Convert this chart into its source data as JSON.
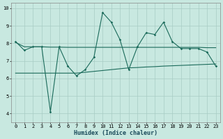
{
  "xlabel": "Humidex (Indice chaleur)",
  "background_color": "#c8e8e0",
  "grid_color": "#a8ccc4",
  "line_color": "#1a6a5a",
  "x": [
    0,
    1,
    2,
    3,
    4,
    5,
    6,
    7,
    8,
    9,
    10,
    11,
    12,
    13,
    14,
    15,
    16,
    17,
    18,
    19,
    20,
    21,
    22,
    23
  ],
  "y_jagged": [
    8.1,
    7.6,
    7.8,
    7.8,
    4.1,
    7.8,
    6.7,
    6.15,
    6.5,
    7.2,
    9.75,
    9.2,
    8.2,
    6.5,
    7.8,
    8.6,
    8.5,
    9.2,
    8.1,
    7.7,
    7.7,
    7.7,
    7.5,
    6.7
  ],
  "y_smooth": [
    8.05,
    7.8,
    7.8,
    7.8,
    7.78,
    7.78,
    7.77,
    7.77,
    7.77,
    7.77,
    7.77,
    7.77,
    7.77,
    7.77,
    7.77,
    7.77,
    7.77,
    7.77,
    7.77,
    7.77,
    7.77,
    7.77,
    7.75,
    7.75
  ],
  "y_smooth2": [
    6.3,
    6.3,
    6.3,
    6.3,
    6.3,
    6.3,
    6.3,
    6.3,
    6.35,
    6.4,
    6.45,
    6.5,
    6.55,
    6.6,
    6.62,
    6.65,
    6.67,
    6.7,
    6.72,
    6.74,
    6.76,
    6.78,
    6.8,
    6.82
  ],
  "ylim": [
    3.5,
    10.3
  ],
  "xlim": [
    -0.5,
    23.5
  ],
  "yticks": [
    4,
    5,
    6,
    7,
    8,
    9,
    10
  ],
  "xlabel_fontsize": 6,
  "tick_fontsize": 5
}
